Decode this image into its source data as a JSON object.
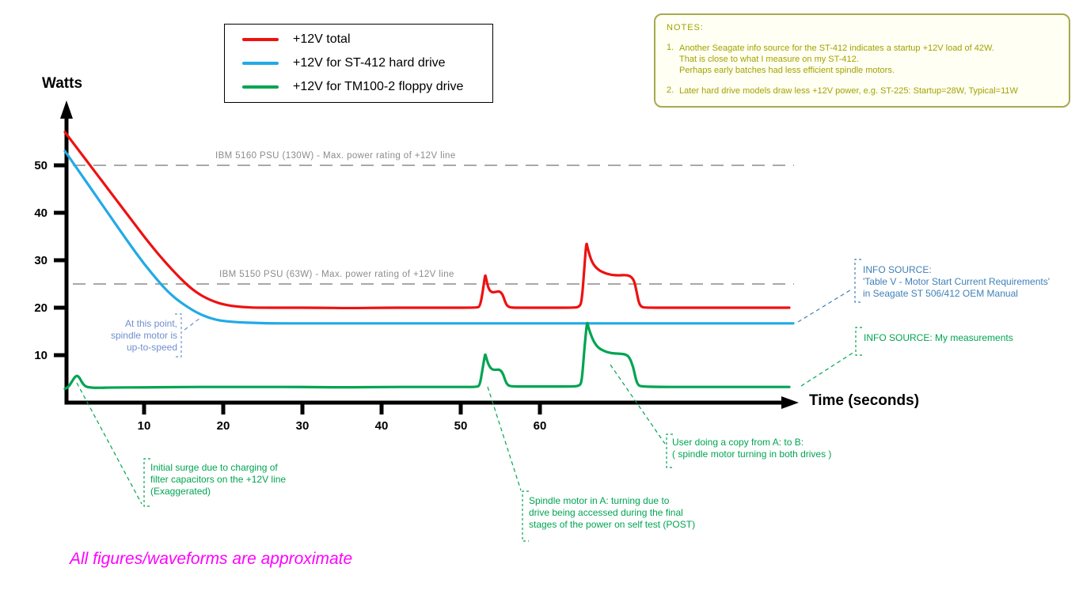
{
  "chart": {
    "y_axis_label": "Watts",
    "x_axis_label": "Time (seconds)",
    "footnote": "All figures/waveforms are approximate"
  },
  "legend": {
    "items": [
      {
        "label": "+12V total",
        "color": "#ee1111"
      },
      {
        "label": "+12V for ST-412 hard drive",
        "color": "#22aae6"
      },
      {
        "label": "+12V for TM100-2 floppy drive",
        "color": "#00a452"
      }
    ]
  },
  "notes": {
    "title": "NOTES:",
    "items": [
      {
        "num": "1.",
        "text": "Another Seagate info source for the ST-412 indicates a startup +12V load of 42W.\nThat is close to what I measure on my ST-412.\nPerhaps early batches had less efficient spindle motors."
      },
      {
        "num": "2.",
        "text": "Later hard drive models draw less +12V power, e.g. ST-225: Startup=28W, Typical=11W"
      }
    ]
  },
  "chart_data": {
    "type": "line",
    "title": "",
    "xlabel": "Time (seconds)",
    "ylabel": "Watts",
    "xlim": [
      0,
      93
    ],
    "ylim": [
      0,
      62
    ],
    "grid": false,
    "legend_position": "top-left",
    "x_ticks": [
      10,
      20,
      30,
      40,
      50,
      60
    ],
    "y_ticks": [
      10,
      20,
      30,
      40,
      50
    ],
    "thresholds": [
      {
        "value": 50,
        "label": "IBM 5160 PSU (130W) - Max. power rating of +12V line",
        "color": "#8c8c8c"
      },
      {
        "value": 25,
        "label": "IBM 5150 PSU (63W) - Max. power rating of +12V line",
        "color": "#8c8c8c"
      }
    ],
    "series": [
      {
        "name": "+12V total",
        "color": "#ee1111",
        "points": [
          [
            0,
            57
          ],
          [
            1,
            54.8
          ],
          [
            2,
            52.6
          ],
          [
            3,
            50.4
          ],
          [
            4,
            48.2
          ],
          [
            5,
            46
          ],
          [
            6,
            43.8
          ],
          [
            7,
            41.6
          ],
          [
            8,
            39.4
          ],
          [
            9,
            37.2
          ],
          [
            10,
            35
          ],
          [
            11,
            32.9
          ],
          [
            12,
            30.9
          ],
          [
            13,
            29
          ],
          [
            14,
            27.2
          ],
          [
            15,
            25.5
          ],
          [
            16,
            24
          ],
          [
            17,
            22.8
          ],
          [
            18,
            21.9
          ],
          [
            19,
            21.2
          ],
          [
            20,
            20.7
          ],
          [
            21,
            20.4
          ],
          [
            22,
            20.2
          ],
          [
            23,
            20.1
          ],
          [
            24,
            20
          ],
          [
            28,
            20
          ],
          [
            32,
            20
          ],
          [
            36,
            19.9
          ],
          [
            40,
            20
          ],
          [
            44,
            20
          ],
          [
            48,
            20
          ],
          [
            52,
            20
          ],
          [
            52.4,
            20.2
          ],
          [
            52.7,
            22.5
          ],
          [
            53.0,
            26.0
          ],
          [
            53.1,
            27
          ],
          [
            53.2,
            26.2
          ],
          [
            53.5,
            24
          ],
          [
            53.9,
            23.2
          ],
          [
            54.4,
            23.3
          ],
          [
            54.9,
            23.5
          ],
          [
            55.3,
            22.8
          ],
          [
            55.7,
            20.8
          ],
          [
            56,
            20.2
          ],
          [
            56.5,
            20
          ],
          [
            58,
            20
          ],
          [
            60,
            20
          ],
          [
            62,
            20
          ],
          [
            64,
            20
          ],
          [
            65,
            20.1
          ],
          [
            65.3,
            21.5
          ],
          [
            65.6,
            28
          ],
          [
            65.8,
            32.5
          ],
          [
            65.9,
            33.7
          ],
          [
            66.0,
            32.8
          ],
          [
            66.2,
            31.5
          ],
          [
            66.6,
            29.5
          ],
          [
            67.2,
            28.2
          ],
          [
            68,
            27.4
          ],
          [
            69,
            26.9
          ],
          [
            70,
            26.8
          ],
          [
            70.8,
            26.9
          ],
          [
            71.4,
            26.7
          ],
          [
            71.9,
            25.8
          ],
          [
            72.2,
            23.5
          ],
          [
            72.5,
            21
          ],
          [
            72.8,
            20.2
          ],
          [
            73.2,
            20
          ],
          [
            76,
            20
          ],
          [
            80,
            20
          ],
          [
            84,
            20
          ],
          [
            88,
            20
          ],
          [
            91.5,
            20
          ]
        ]
      },
      {
        "name": "+12V for ST-412 hard drive",
        "color": "#22aae6",
        "points": [
          [
            0,
            53
          ],
          [
            2,
            48.2
          ],
          [
            4,
            43.4
          ],
          [
            6,
            38.6
          ],
          [
            8,
            33.8
          ],
          [
            10,
            29.2
          ],
          [
            12,
            25.2
          ],
          [
            13,
            23.4
          ],
          [
            14,
            21.9
          ],
          [
            15,
            20.7
          ],
          [
            16,
            19.6
          ],
          [
            17,
            18.7
          ],
          [
            18,
            18
          ],
          [
            19,
            17.5
          ],
          [
            20,
            17.2
          ],
          [
            22,
            16.9
          ],
          [
            24,
            16.8
          ],
          [
            26,
            16.7
          ],
          [
            30,
            16.7
          ],
          [
            35,
            16.7
          ],
          [
            40,
            16.7
          ],
          [
            45,
            16.7
          ],
          [
            50,
            16.7
          ],
          [
            55,
            16.7
          ],
          [
            60,
            16.7
          ],
          [
            65,
            16.7
          ],
          [
            70,
            16.7
          ],
          [
            75,
            16.7
          ],
          [
            80,
            16.7
          ],
          [
            85,
            16.7
          ],
          [
            92,
            16.7
          ]
        ]
      },
      {
        "name": "+12V for TM100-2 floppy drive",
        "color": "#00a452",
        "points": [
          [
            0,
            2.9
          ],
          [
            0.4,
            3.2
          ],
          [
            0.8,
            4.2
          ],
          [
            1.2,
            5.3
          ],
          [
            1.5,
            5.7
          ],
          [
            1.8,
            5.4
          ],
          [
            2.1,
            4.4
          ],
          [
            2.5,
            3.5
          ],
          [
            3,
            3.2
          ],
          [
            4,
            3.1
          ],
          [
            6,
            3.2
          ],
          [
            10,
            3.2
          ],
          [
            15,
            3.3
          ],
          [
            20,
            3.3
          ],
          [
            25,
            3.3
          ],
          [
            30,
            3.3
          ],
          [
            35,
            3.2
          ],
          [
            40,
            3.3
          ],
          [
            45,
            3.3
          ],
          [
            50,
            3.3
          ],
          [
            52,
            3.3
          ],
          [
            52.4,
            3.6
          ],
          [
            52.7,
            6.5
          ],
          [
            53.0,
            9.5
          ],
          [
            53.1,
            10.3
          ],
          [
            53.2,
            9.6
          ],
          [
            53.5,
            8
          ],
          [
            53.9,
            7
          ],
          [
            54.4,
            6.9
          ],
          [
            54.9,
            7
          ],
          [
            55.3,
            6.3
          ],
          [
            55.7,
            4.3
          ],
          [
            56,
            3.6
          ],
          [
            56.5,
            3.4
          ],
          [
            58,
            3.4
          ],
          [
            60,
            3.4
          ],
          [
            62,
            3.4
          ],
          [
            64,
            3.4
          ],
          [
            65,
            3.5
          ],
          [
            65.3,
            4.5
          ],
          [
            65.6,
            11
          ],
          [
            65.9,
            16.2
          ],
          [
            66.0,
            17
          ],
          [
            66.1,
            16.0
          ],
          [
            66.4,
            14.5
          ],
          [
            66.8,
            12.8
          ],
          [
            67.4,
            11.5
          ],
          [
            68.2,
            10.8
          ],
          [
            69,
            10.4
          ],
          [
            70,
            10.3
          ],
          [
            70.8,
            10.2
          ],
          [
            71.3,
            9.6
          ],
          [
            71.8,
            7.5
          ],
          [
            72.1,
            5
          ],
          [
            72.4,
            3.7
          ],
          [
            72.8,
            3.4
          ],
          [
            75,
            3.3
          ],
          [
            78,
            3.3
          ],
          [
            82,
            3.3
          ],
          [
            86,
            3.3
          ],
          [
            91.5,
            3.3
          ]
        ]
      }
    ]
  },
  "annotations": [
    {
      "id": "at_this_point",
      "color": "#6f8fce",
      "text": "At this point,\nspindle motor is\nup-to-speed"
    },
    {
      "id": "info_blue",
      "color": "#4080b8",
      "text": "INFO SOURCE:\n'Table V - Motor Start Current Requirements'\nin Seagate ST 506/412 OEM Manual"
    },
    {
      "id": "info_green",
      "color": "#00a452",
      "text": "INFO SOURCE: My measurements"
    },
    {
      "id": "initial_surge",
      "color": "#00a452",
      "text": "Initial surge due to charging of\nfilter capacitors on the +12V line\n(Exaggerated)"
    },
    {
      "id": "post",
      "color": "#00a452",
      "text": "Spindle motor in A: turning due to\ndrive being accessed during the final\nstages of the power on self test (POST)"
    },
    {
      "id": "copy",
      "color": "#00a452",
      "text": "User doing a copy from A: to B:\n( spindle motor turning in both drives )"
    }
  ]
}
